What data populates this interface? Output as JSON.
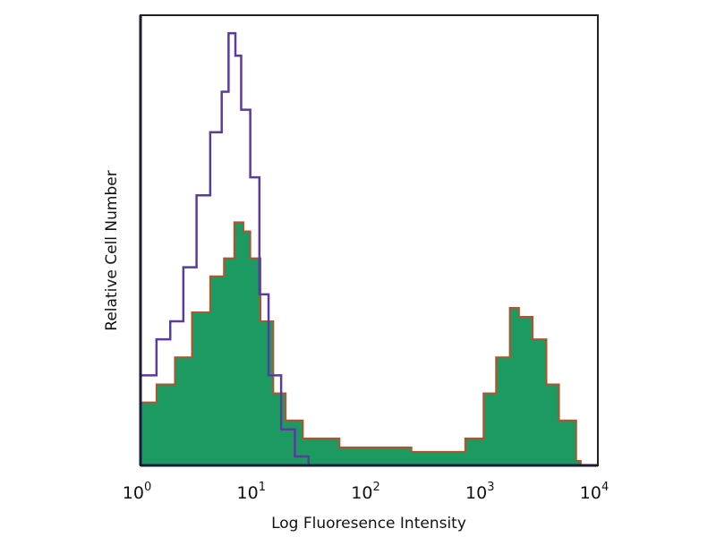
{
  "chart_data": {
    "type": "area",
    "title": "",
    "xlabel": "Log Fluoresence Intensity",
    "ylabel": "Relative Cell Number",
    "xscale": "log",
    "xlim": [
      1,
      10000
    ],
    "ylim": [
      0,
      100
    ],
    "grid": false,
    "legend": "none",
    "x_ticks": [
      {
        "base": "10",
        "exp": "0"
      },
      {
        "base": "10",
        "exp": "1"
      },
      {
        "base": "10",
        "exp": "2"
      },
      {
        "base": "10",
        "exp": "3"
      },
      {
        "base": "10",
        "exp": "4"
      }
    ],
    "series": [
      {
        "style": "outline",
        "color": "#5b3c9c",
        "x": [
          1,
          1.38,
          1.82,
          2.37,
          3.09,
          4.07,
          5.13,
          5.89,
          6.76,
          7.59,
          9.12,
          10.96,
          13.18,
          16.98,
          22.39,
          29.51
        ],
        "y": [
          20,
          28,
          32,
          44,
          60,
          74,
          83,
          96,
          91,
          79,
          64,
          38,
          20,
          8,
          2,
          0
        ]
      },
      {
        "style": "filled",
        "color": "#1c9a62",
        "outline": "#b3522c",
        "x": [
          1,
          1.38,
          2.0,
          2.82,
          4.07,
          5.37,
          6.61,
          7.94,
          9.12,
          11.2,
          14.5,
          18.6,
          26.3,
          55,
          112,
          234,
          479,
          692,
          1000,
          1288,
          1698,
          2042,
          2692,
          3548,
          4571,
          6457,
          7079
        ],
        "y": [
          14,
          18,
          24,
          34,
          42,
          46,
          54,
          52,
          46,
          32,
          16,
          10,
          6,
          4,
          4,
          3,
          3,
          6,
          16,
          24,
          35,
          33,
          28,
          18,
          10,
          1,
          0
        ]
      }
    ]
  }
}
